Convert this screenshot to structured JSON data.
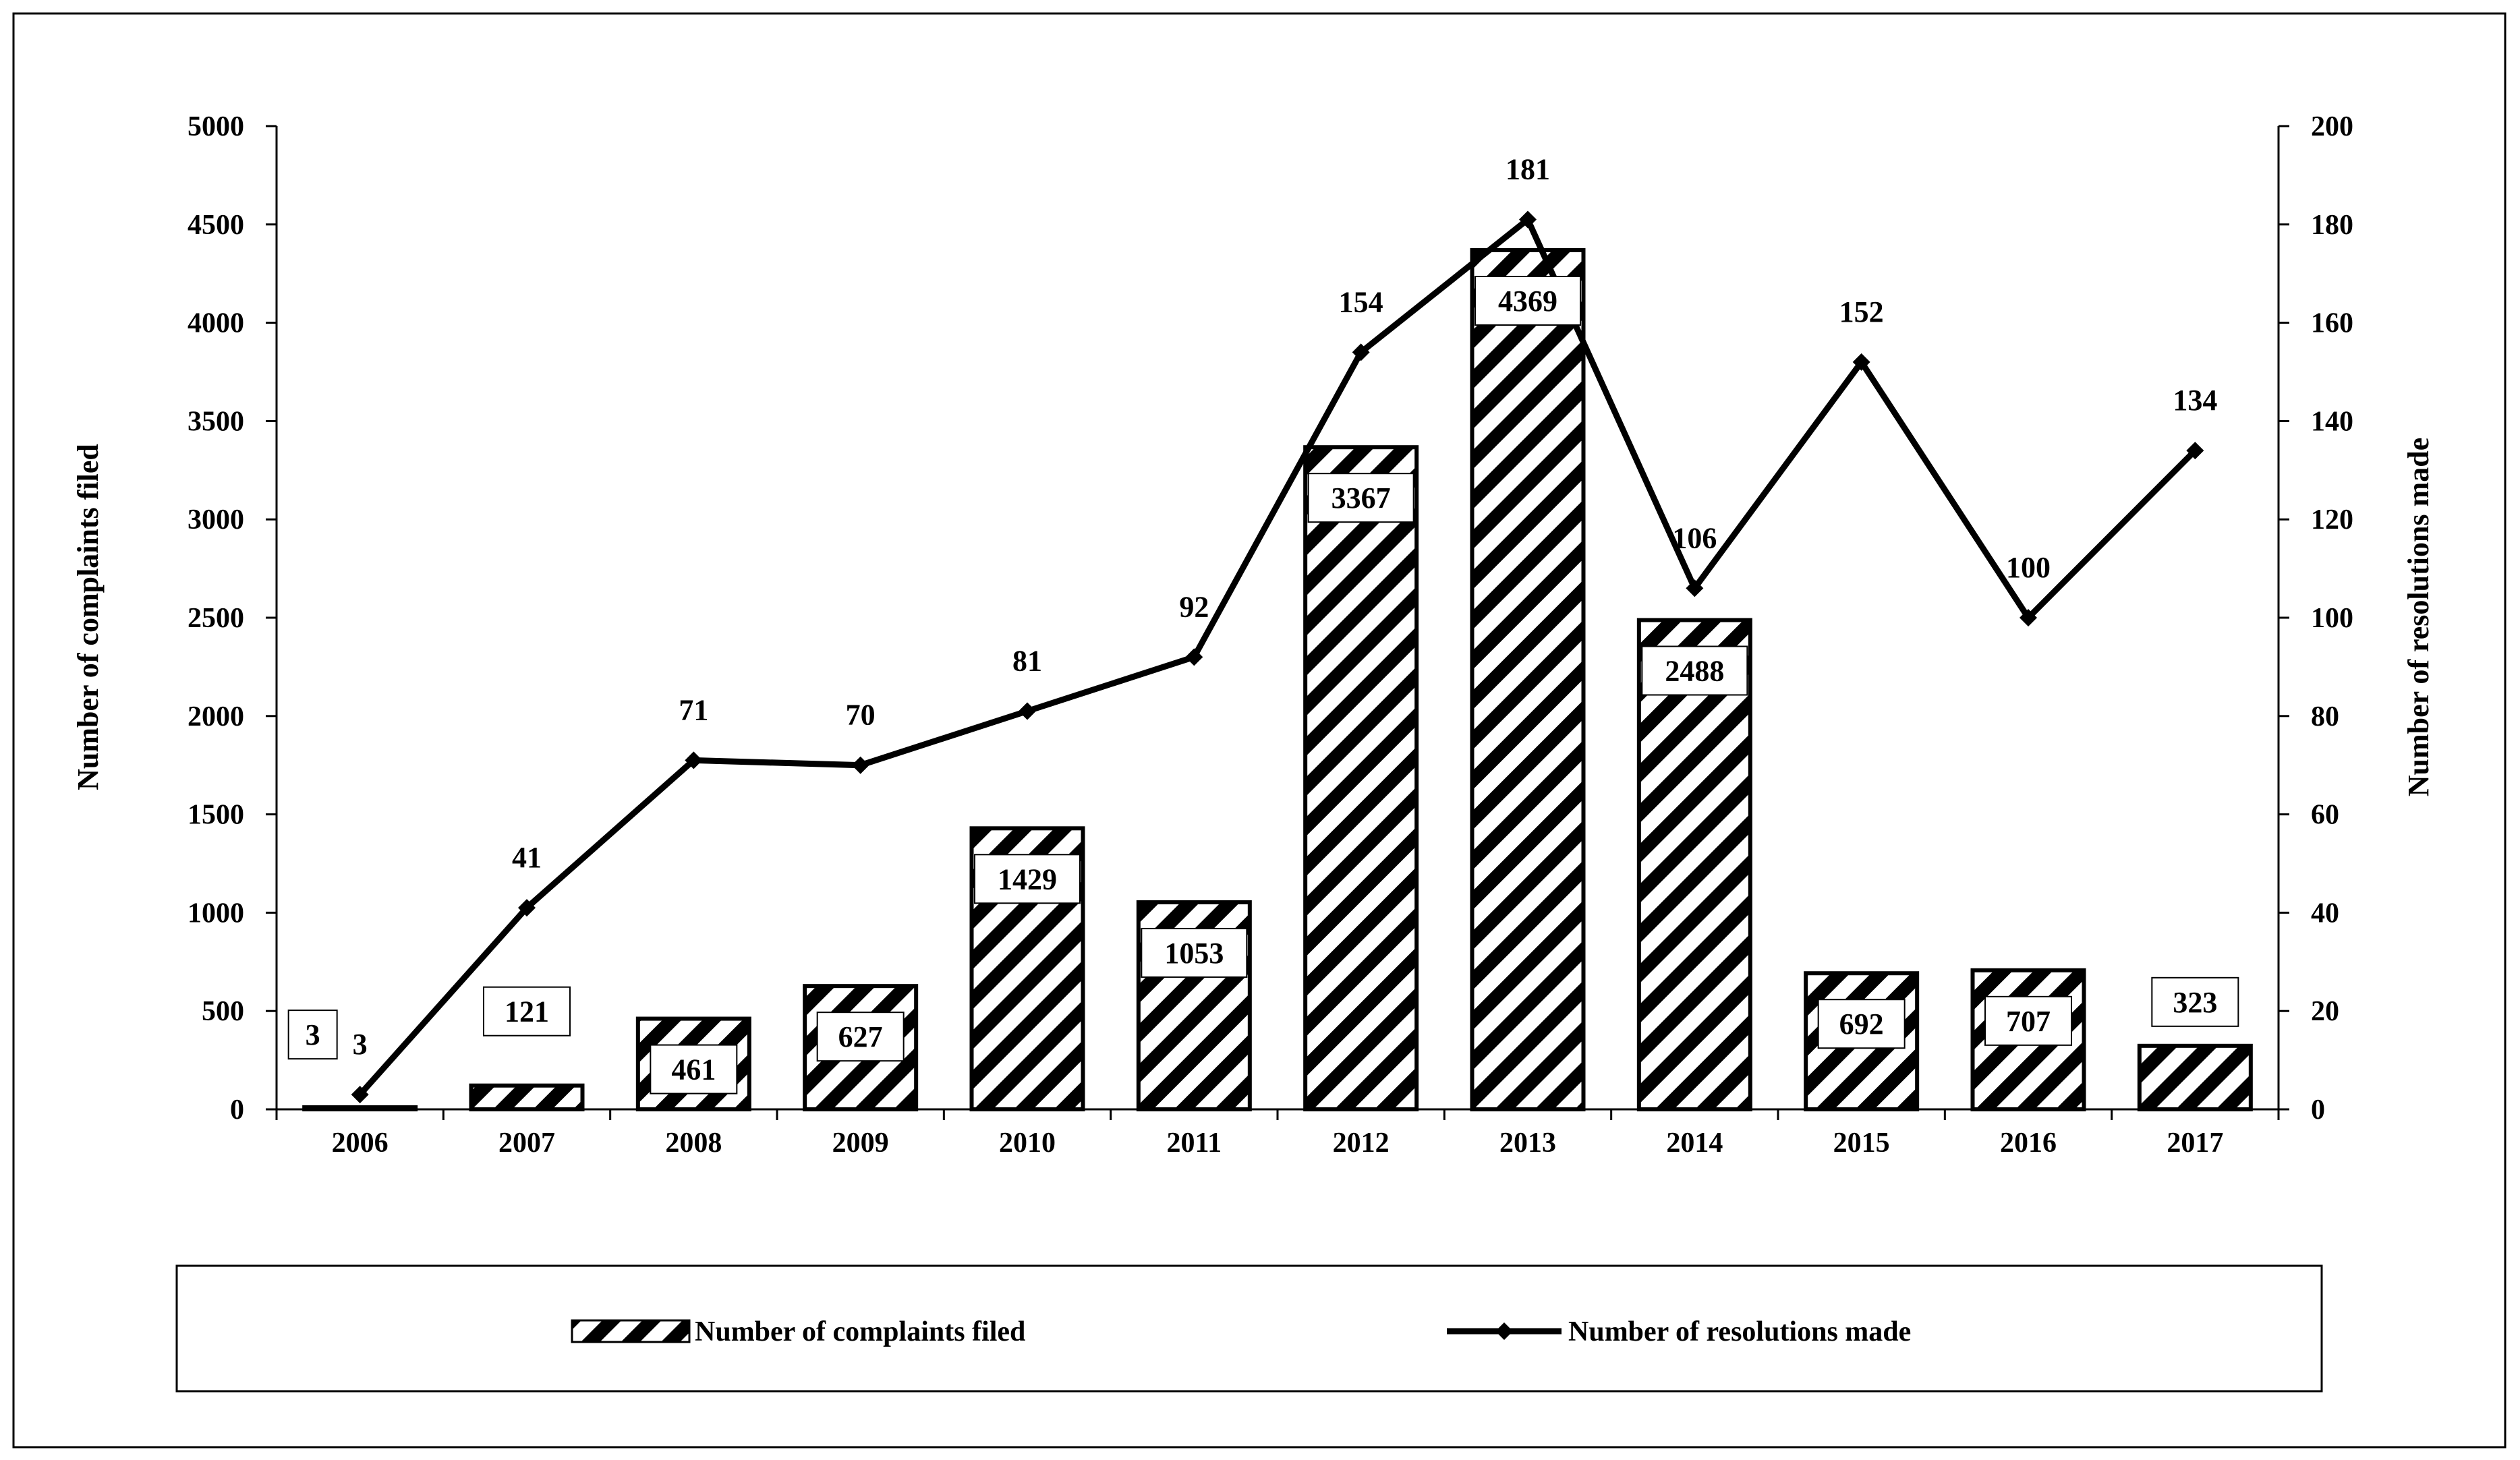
{
  "chart_data": {
    "type": "bar",
    "categories": [
      "2006",
      "2007",
      "2008",
      "2009",
      "2010",
      "2011",
      "2012",
      "2013",
      "2014",
      "2015",
      "2016",
      "2017"
    ],
    "series": [
      {
        "name": "Number of complaints filed",
        "type": "bar",
        "axis": "left",
        "pattern": "diagonal-hatch",
        "values": [
          3,
          121,
          461,
          627,
          1429,
          1053,
          3367,
          4369,
          2488,
          692,
          707,
          323
        ]
      },
      {
        "name": "Number of resolutions made",
        "type": "line",
        "axis": "right",
        "marker": "diamond",
        "values": [
          3,
          41,
          71,
          70,
          81,
          92,
          154,
          181,
          106,
          152,
          100,
          134
        ]
      }
    ],
    "ylabel": "Number of complaints filed",
    "y2label": "Number of resolutions made",
    "ylim": [
      0,
      5000
    ],
    "y2lim": [
      0,
      200
    ],
    "yticks": [
      "0",
      "500",
      "1000",
      "1500",
      "2000",
      "2500",
      "3000",
      "3500",
      "4000",
      "4500",
      "5000"
    ],
    "y2ticks": [
      "0",
      "20",
      "40",
      "60",
      "80",
      "100",
      "120",
      "140",
      "160",
      "180",
      "200"
    ],
    "grid": false,
    "legend": "bottom",
    "colors": {
      "ink": "#000000",
      "background": "#ffffff"
    }
  }
}
